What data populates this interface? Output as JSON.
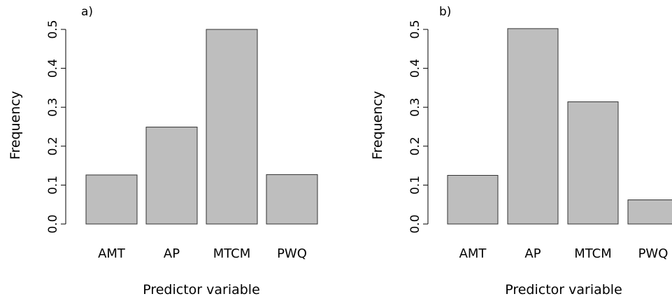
{
  "chart_data": [
    {
      "type": "bar",
      "panel_label": "a)",
      "categories": [
        "AMT",
        "AP",
        "MTCM",
        "PWQ"
      ],
      "values": [
        0.126,
        0.249,
        0.5,
        0.127
      ],
      "xlabel": "Predictor variable",
      "ylabel": "Frequency",
      "ylim": [
        0,
        0.5
      ],
      "yticks": [
        "0.0",
        "0.1",
        "0.2",
        "0.3",
        "0.4",
        "0.5"
      ],
      "grid": false,
      "bar_color": "#bebebe",
      "bar_border": "#333333"
    },
    {
      "type": "bar",
      "panel_label": "b)",
      "categories": [
        "AMT",
        "AP",
        "MTCM",
        "PWQ"
      ],
      "values": [
        0.125,
        0.502,
        0.314,
        0.062
      ],
      "xlabel": "Predictor variable",
      "ylabel": "Frequency",
      "ylim": [
        0,
        0.5
      ],
      "yticks": [
        "0.0",
        "0.1",
        "0.2",
        "0.3",
        "0.4",
        "0.5"
      ],
      "grid": false,
      "bar_color": "#bebebe",
      "bar_border": "#333333"
    }
  ]
}
